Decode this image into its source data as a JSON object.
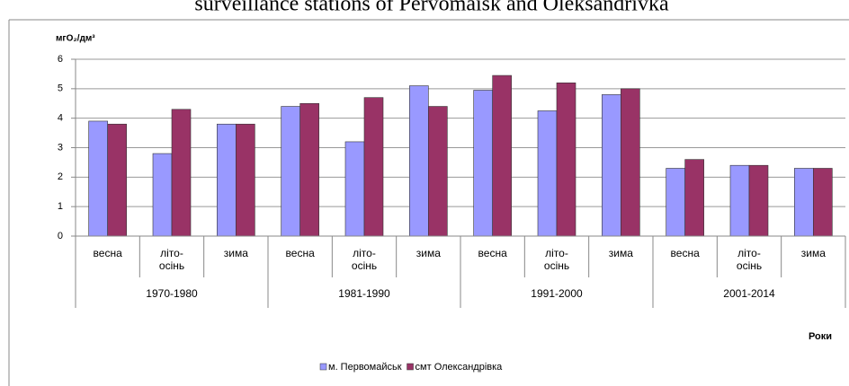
{
  "chart_data": {
    "type": "bar",
    "title": "surveillance stations of Pervomaisk and Oleksandrivka",
    "y_label": "мгO₂/дм³",
    "x_label": "Роки",
    "categories": [
      "весна",
      "літо-осінь",
      "зима",
      "весна",
      "літо-осінь",
      "зима",
      "весна",
      "літо-осінь",
      "зима",
      "весна",
      "літо-осінь",
      "зима"
    ],
    "groups": [
      "1970-1980",
      "1981-1990",
      "1991-2000",
      "2001-2014"
    ],
    "series": [
      {
        "name": "м. Первомайськ",
        "color": "#9999ff",
        "values": [
          3.9,
          2.8,
          3.8,
          4.4,
          3.2,
          5.1,
          4.95,
          4.25,
          4.8,
          2.3,
          2.4,
          2.3
        ]
      },
      {
        "name": "смт Олександрівка",
        "color": "#993366",
        "values": [
          3.8,
          4.3,
          3.8,
          4.5,
          4.7,
          4.4,
          5.45,
          5.2,
          5.0,
          2.6,
          2.4,
          2.3
        ]
      }
    ],
    "ylim": [
      0,
      6
    ],
    "yticks": [
      0,
      1,
      2,
      3,
      4,
      5,
      6
    ],
    "grid": true,
    "legend": "bottom"
  }
}
